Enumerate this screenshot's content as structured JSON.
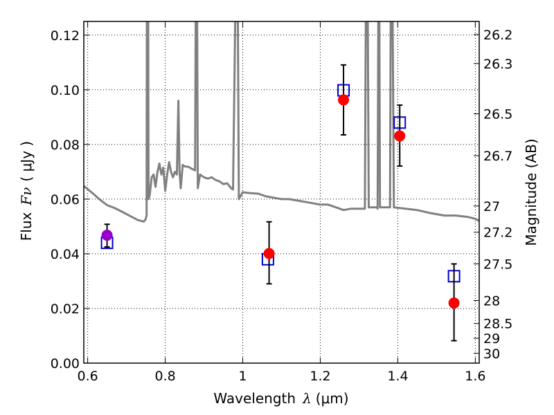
{
  "chart_data": {
    "type": "scatter",
    "xlabel": "Wavelength",
    "xlabel_symbol": "λ",
    "xlabel_unit": "(μm)",
    "ylabel": "Flux",
    "ylabel_symbol": "Fν",
    "ylabel_unit": "( μJy )",
    "y2label": "Magnitude (AB)",
    "xlim": [
      0.59,
      1.61
    ],
    "ylim": [
      0.0,
      0.125
    ],
    "grid": true,
    "x_ticks": [
      0.6,
      0.8,
      1.0,
      1.2,
      1.4,
      1.6
    ],
    "x_tick_labels": [
      "0.6",
      "0.8",
      "1",
      "1.2",
      "1.4",
      "1.6"
    ],
    "y_ticks": [
      0.0,
      0.02,
      0.04,
      0.06,
      0.08,
      0.1,
      0.12
    ],
    "y_tick_labels": [
      "0.00",
      "0.02",
      "0.04",
      "0.06",
      "0.08",
      "0.10",
      "0.12"
    ],
    "y2_ticks": [
      {
        "label": "26.2",
        "flux": 0.1202
      },
      {
        "label": "26.3",
        "flux": 0.1096
      },
      {
        "label": "26.5",
        "flux": 0.0912
      },
      {
        "label": "26.7",
        "flux": 0.0759
      },
      {
        "label": "27",
        "flux": 0.0575
      },
      {
        "label": "27.2",
        "flux": 0.0479
      },
      {
        "label": "27.5",
        "flux": 0.0363
      },
      {
        "label": "28",
        "flux": 0.0229
      },
      {
        "label": "28.5",
        "flux": 0.0145
      },
      {
        "label": "29",
        "flux": 0.0091
      },
      {
        "label": "30",
        "flux": 0.0036
      }
    ],
    "model_spectrum": {
      "color": "#808080",
      "points": [
        [
          0.59,
          0.0648
        ],
        [
          0.61,
          0.0625
        ],
        [
          0.63,
          0.06
        ],
        [
          0.65,
          0.0578
        ],
        [
          0.67,
          0.0567
        ],
        [
          0.69,
          0.0553
        ],
        [
          0.71,
          0.0538
        ],
        [
          0.73,
          0.0523
        ],
        [
          0.745,
          0.0518
        ],
        [
          0.749,
          0.0525
        ],
        [
          0.752,
          0.054
        ],
        [
          0.753,
          0.14
        ],
        [
          0.756,
          0.14
        ],
        [
          0.757,
          0.06
        ],
        [
          0.76,
          0.0615
        ],
        [
          0.765,
          0.068
        ],
        [
          0.77,
          0.069
        ],
        [
          0.775,
          0.0645
        ],
        [
          0.78,
          0.07
        ],
        [
          0.785,
          0.073
        ],
        [
          0.79,
          0.069
        ],
        [
          0.795,
          0.0715
        ],
        [
          0.8,
          0.063
        ],
        [
          0.805,
          0.069
        ],
        [
          0.81,
          0.0735
        ],
        [
          0.815,
          0.07
        ],
        [
          0.82,
          0.068
        ],
        [
          0.825,
          0.07
        ],
        [
          0.83,
          0.069
        ],
        [
          0.834,
          0.096
        ],
        [
          0.837,
          0.07
        ],
        [
          0.84,
          0.064
        ],
        [
          0.845,
          0.0725
        ],
        [
          0.85,
          0.072
        ],
        [
          0.86,
          0.0718
        ],
        [
          0.87,
          0.071
        ],
        [
          0.877,
          0.0705
        ],
        [
          0.879,
          0.14
        ],
        [
          0.882,
          0.14
        ],
        [
          0.884,
          0.064
        ],
        [
          0.89,
          0.069
        ],
        [
          0.9,
          0.068
        ],
        [
          0.91,
          0.0675
        ],
        [
          0.92,
          0.068
        ],
        [
          0.93,
          0.067
        ],
        [
          0.94,
          0.0665
        ],
        [
          0.95,
          0.0655
        ],
        [
          0.96,
          0.0658
        ],
        [
          0.97,
          0.064
        ],
        [
          0.975,
          0.0635
        ],
        [
          0.982,
          0.14
        ],
        [
          0.987,
          0.14
        ],
        [
          0.99,
          0.06
        ],
        [
          1.0,
          0.0625
        ],
        [
          1.02,
          0.0622
        ],
        [
          1.04,
          0.062
        ],
        [
          1.06,
          0.061
        ],
        [
          1.08,
          0.0605
        ],
        [
          1.1,
          0.06
        ],
        [
          1.12,
          0.06
        ],
        [
          1.14,
          0.0595
        ],
        [
          1.16,
          0.059
        ],
        [
          1.18,
          0.0585
        ],
        [
          1.2,
          0.058
        ],
        [
          1.22,
          0.058
        ],
        [
          1.24,
          0.057
        ],
        [
          1.26,
          0.056
        ],
        [
          1.28,
          0.0565
        ],
        [
          1.3,
          0.0565
        ],
        [
          1.315,
          0.0565
        ],
        [
          1.318,
          0.14
        ],
        [
          1.322,
          0.14
        ],
        [
          1.325,
          0.057
        ],
        [
          1.34,
          0.057
        ],
        [
          1.346,
          0.057
        ],
        [
          1.348,
          0.0565
        ],
        [
          1.35,
          0.14
        ],
        [
          1.352,
          0.14
        ],
        [
          1.354,
          0.057
        ],
        [
          1.36,
          0.057
        ],
        [
          1.37,
          0.057
        ],
        [
          1.38,
          0.057
        ],
        [
          1.382,
          0.14
        ],
        [
          1.386,
          0.14
        ],
        [
          1.39,
          0.057
        ],
        [
          1.42,
          0.0565
        ],
        [
          1.45,
          0.056
        ],
        [
          1.48,
          0.055
        ],
        [
          1.5,
          0.0545
        ],
        [
          1.52,
          0.054
        ],
        [
          1.55,
          0.054
        ],
        [
          1.58,
          0.0535
        ],
        [
          1.6,
          0.0528
        ],
        [
          1.61,
          0.052
        ]
      ]
    },
    "model_photometry": {
      "marker": "open-square",
      "color": "#0000cc",
      "points": [
        {
          "x": 0.65,
          "y": 0.044
        },
        {
          "x": 1.065,
          "y": 0.038
        },
        {
          "x": 1.26,
          "y": 0.0998
        },
        {
          "x": 1.405,
          "y": 0.088
        },
        {
          "x": 1.545,
          "y": 0.0318
        }
      ]
    },
    "observed_photometry": {
      "marker": "filled-circle",
      "points": [
        {
          "x": 0.65,
          "y": 0.0468,
          "yerr_low": 0.0043,
          "yerr_high": 0.004,
          "color": "#9900cc"
        },
        {
          "x": 1.068,
          "y": 0.0401,
          "yerr_low": 0.0111,
          "yerr_high": 0.0116,
          "color": "#ff0000"
        },
        {
          "x": 1.26,
          "y": 0.0963,
          "yerr_low": 0.0128,
          "yerr_high": 0.0128,
          "color": "#ff0000"
        },
        {
          "x": 1.405,
          "y": 0.0831,
          "yerr_low": 0.011,
          "yerr_high": 0.0113,
          "color": "#ff0000"
        },
        {
          "x": 1.545,
          "y": 0.022,
          "yerr_low": 0.0138,
          "yerr_high": 0.0143,
          "color": "#ff0000"
        }
      ]
    }
  }
}
